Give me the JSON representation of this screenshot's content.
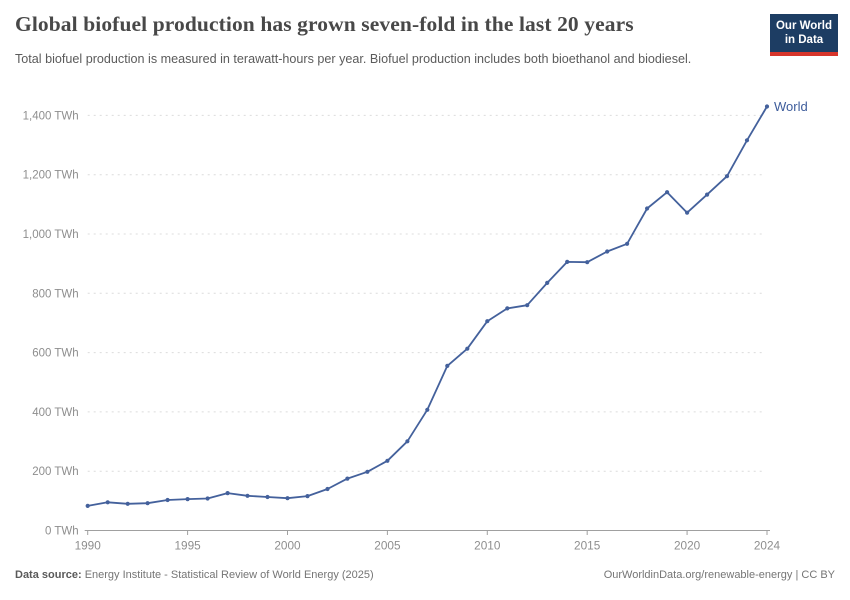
{
  "header": {
    "title": "Global biofuel production has grown seven-fold in the last 20 years",
    "subtitle": "Total biofuel production is measured in terawatt-hours per year. Biofuel production includes both bioethanol and biodiesel.",
    "logo": {
      "line1": "Our World",
      "line2": "in Data"
    }
  },
  "chart_data": {
    "type": "line",
    "title": "Global biofuel production has grown seven-fold in the last 20 years",
    "ylabel": "TWh",
    "xlabel": "",
    "xlim": [
      1990,
      2024
    ],
    "ylim": [
      0,
      1400
    ],
    "grid": "horizontal-dashed",
    "legend_position": "end-of-line-label",
    "x": [
      1990,
      1991,
      1992,
      1993,
      1994,
      1995,
      1996,
      1997,
      1998,
      1999,
      2000,
      2001,
      2002,
      2003,
      2004,
      2005,
      2006,
      2007,
      2008,
      2009,
      2010,
      2011,
      2012,
      2013,
      2014,
      2015,
      2016,
      2017,
      2018,
      2019,
      2020,
      2021,
      2022,
      2023,
      2024
    ],
    "series": [
      {
        "name": "World",
        "color": "#44619c",
        "values": [
          83,
          95,
          90,
          92,
          103,
          106,
          108,
          126,
          117,
          113,
          109,
          116,
          140,
          175,
          198,
          235,
          301,
          407,
          555,
          613,
          706,
          749,
          760,
          835,
          906,
          905,
          941,
          967,
          1086,
          1141,
          1072,
          1133,
          1195,
          1316,
          1430
        ]
      }
    ],
    "y_ticks": [
      {
        "v": 0,
        "label": "0 TWh"
      },
      {
        "v": 200,
        "label": "200 TWh"
      },
      {
        "v": 400,
        "label": "400 TWh"
      },
      {
        "v": 600,
        "label": "600 TWh"
      },
      {
        "v": 800,
        "label": "800 TWh"
      },
      {
        "v": 1000,
        "label": "1,000 TWh"
      },
      {
        "v": 1200,
        "label": "1,200 TWh"
      },
      {
        "v": 1400,
        "label": "1,400 TWh"
      }
    ],
    "x_ticks": [
      {
        "v": 1990,
        "label": "1990"
      },
      {
        "v": 1995,
        "label": "1995"
      },
      {
        "v": 2000,
        "label": "2000"
      },
      {
        "v": 2005,
        "label": "2005"
      },
      {
        "v": 2010,
        "label": "2010"
      },
      {
        "v": 2015,
        "label": "2015"
      },
      {
        "v": 2020,
        "label": "2020"
      },
      {
        "v": 2024,
        "label": "2024"
      }
    ]
  },
  "colors": {
    "line": "#44619c",
    "entity_label": "#3d5c9b",
    "gridline": "#dcdcdc",
    "axis_line": "#a0a0a0",
    "tick_label": "#8e8e8e",
    "title": "#484848",
    "subtitle": "#5b5b5b",
    "logo_bg": "#1d3d63",
    "logo_stripe": "#d7352b"
  },
  "footer": {
    "source_label": "Data source:",
    "source_text": " Energy Institute - Statistical Review of World Energy (2025)",
    "link_text": "OurWorldinData.org/renewable-energy | CC BY"
  }
}
